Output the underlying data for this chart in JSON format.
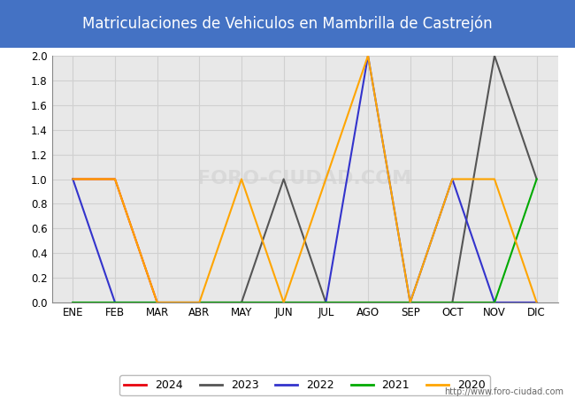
{
  "title": "Matriculaciones de Vehiculos en Mambrilla de Castrejón",
  "title_color": "#ffffff",
  "title_bg_color": "#4472c4",
  "month_labels": [
    "ENE",
    "FEB",
    "MAR",
    "ABR",
    "MAY",
    "JUN",
    "JUL",
    "AGO",
    "SEP",
    "OCT",
    "NOV",
    "DIC"
  ],
  "series": {
    "2024": {
      "color": "#e8000d",
      "data": [
        1,
        1,
        0,
        0,
        0,
        0,
        0,
        0,
        0,
        0,
        0,
        0
      ]
    },
    "2023": {
      "color": "#555555",
      "data": [
        0,
        0,
        0,
        0,
        0,
        1,
        0,
        0,
        0,
        0,
        2,
        1
      ]
    },
    "2022": {
      "color": "#3333cc",
      "data": [
        1,
        0,
        0,
        0,
        0,
        0,
        0,
        2,
        0,
        1,
        0,
        0
      ]
    },
    "2021": {
      "color": "#00aa00",
      "data": [
        0,
        0,
        0,
        0,
        0,
        0,
        0,
        0,
        0,
        0,
        0,
        1
      ]
    },
    "2020": {
      "color": "#ffa500",
      "data": [
        1,
        1,
        0,
        0,
        1,
        0,
        1,
        2,
        0,
        1,
        1,
        0
      ]
    }
  },
  "ylim": [
    0,
    2.0
  ],
  "yticks": [
    0.0,
    0.2,
    0.4,
    0.6,
    0.8,
    1.0,
    1.2,
    1.4,
    1.6,
    1.8,
    2.0
  ],
  "legend_order": [
    "2024",
    "2023",
    "2022",
    "2021",
    "2020"
  ],
  "grid_color": "#d0d0d0",
  "plot_bg_color": "#e8e8e8",
  "fig_bg_color": "#ffffff",
  "watermark_plot": "FORO-CIUDAD.COM",
  "watermark_bottom": "http://www.foro-ciudad.com",
  "title_fontsize": 12,
  "tick_fontsize": 8.5,
  "legend_fontsize": 9,
  "line_width": 1.5
}
